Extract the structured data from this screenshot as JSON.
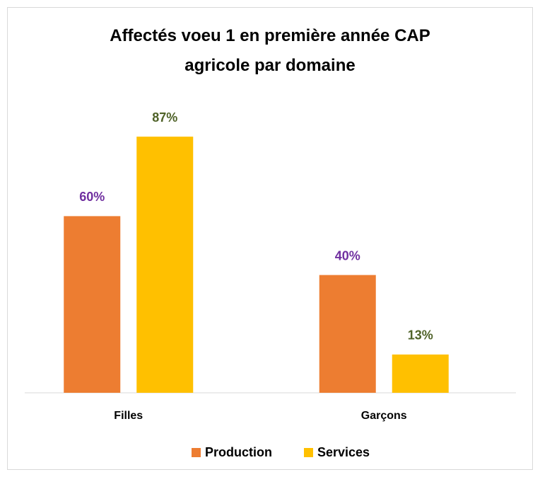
{
  "chart_data": {
    "type": "bar",
    "title": "Affectés voeu 1 en première année CAP agricole par domaine",
    "categories": [
      "Filles",
      "Garçons"
    ],
    "series": [
      {
        "name": "Production",
        "color": "#ed7d31",
        "label_color": "#7030a0",
        "values": [
          60,
          40
        ],
        "value_labels": [
          "60%",
          "40%"
        ]
      },
      {
        "name": "Services",
        "color": "#ffc000",
        "label_color": "#4f6228",
        "values": [
          87,
          13
        ],
        "value_labels": [
          "87%",
          "13%"
        ]
      }
    ],
    "ylim": [
      0,
      100
    ],
    "legend": "bottom"
  }
}
